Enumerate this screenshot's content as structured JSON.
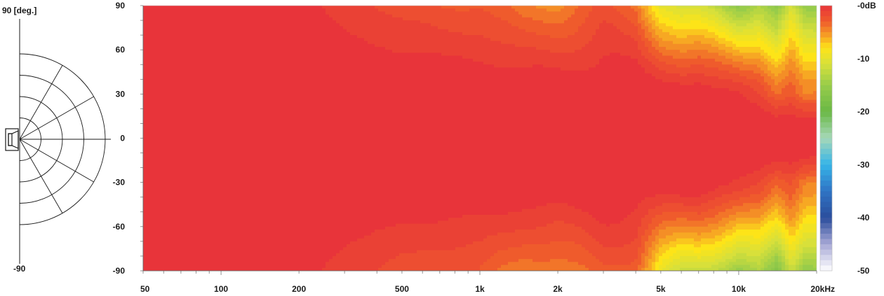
{
  "chart_data": {
    "type": "heatmap",
    "title": "",
    "x_scale": "log",
    "x_range": [
      50,
      20000
    ],
    "x_ticks": [
      {
        "value": 50,
        "label": "50"
      },
      {
        "value": 100,
        "label": "100"
      },
      {
        "value": 200,
        "label": "200"
      },
      {
        "value": 500,
        "label": "500"
      },
      {
        "value": 1000,
        "label": "1k"
      },
      {
        "value": 2000,
        "label": "2k"
      },
      {
        "value": 5000,
        "label": "5k"
      },
      {
        "value": 10000,
        "label": "10k"
      },
      {
        "value": 20000,
        "label": "20kHz"
      }
    ],
    "y_range": [
      -90,
      90
    ],
    "y_ticks": [
      {
        "value": 90,
        "label": "90"
      },
      {
        "value": 60,
        "label": "60"
      },
      {
        "value": 30,
        "label": "30"
      },
      {
        "value": 0,
        "label": "0"
      },
      {
        "value": -30,
        "label": "-30"
      },
      {
        "value": -60,
        "label": "-60"
      },
      {
        "value": -90,
        "label": "-90"
      }
    ],
    "z_range": [
      -50,
      0
    ],
    "colorbar_ticks": [
      {
        "value": 0,
        "label": "-0dB"
      },
      {
        "value": -10,
        "label": "-10"
      },
      {
        "value": -20,
        "label": "-20"
      },
      {
        "value": -30,
        "label": "-30"
      },
      {
        "value": -40,
        "label": "-40"
      },
      {
        "value": -50,
        "label": "-50"
      }
    ],
    "colorscale": [
      {
        "db": 0,
        "color": "#e8343a"
      },
      {
        "db": -3,
        "color": "#ef5b2c"
      },
      {
        "db": -6,
        "color": "#f7a823"
      },
      {
        "db": -8,
        "color": "#fde418"
      },
      {
        "db": -11,
        "color": "#d8e03a"
      },
      {
        "db": -15,
        "color": "#98cc4a"
      },
      {
        "db": -20,
        "color": "#6ab845"
      },
      {
        "db": -25,
        "color": "#a6d8b8"
      },
      {
        "db": -30,
        "color": "#36b4e8"
      },
      {
        "db": -35,
        "color": "#2f74c4"
      },
      {
        "db": -40,
        "color": "#2a4d9c"
      },
      {
        "db": -45,
        "color": "#a7a8d6"
      },
      {
        "db": -50,
        "color": "#ffffff"
      }
    ],
    "contour_step_db": 1,
    "directivity_summary": {
      "frequencies_hz": [
        50,
        100,
        200,
        300,
        500,
        700,
        1000,
        1500,
        2000,
        3000,
        4000,
        5000,
        6000,
        7000,
        8000,
        10000,
        12000,
        14000,
        16000,
        18000,
        20000
      ],
      "level_at_90deg_db": [
        0,
        0,
        -0.5,
        -1.5,
        -2.5,
        -3,
        -3,
        -5,
        -5,
        -3,
        -4,
        -10,
        -12,
        -12,
        -13,
        -16,
        -14,
        -17,
        -12,
        -16,
        -16
      ],
      "level_at_30deg_db": [
        0,
        0,
        0,
        0,
        0,
        0,
        0,
        0,
        0,
        0,
        0,
        0,
        0,
        0,
        -0.5,
        -1,
        -2,
        -4,
        -3,
        -5,
        -5
      ]
    }
  },
  "polar_legend": {
    "top_label": "90 [deg.]",
    "bottom_label": "-90"
  }
}
